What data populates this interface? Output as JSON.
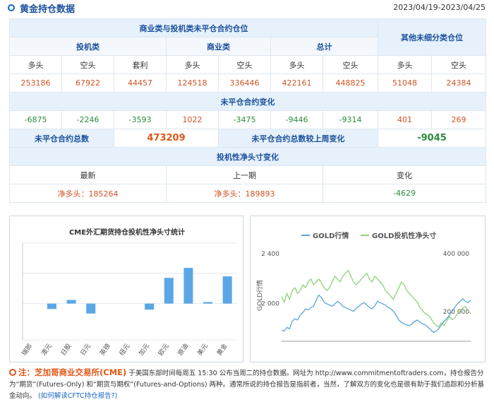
{
  "header": {
    "title": "黄金持仓数据",
    "date_range": "2023/04/19-2023/04/25"
  },
  "table": {
    "group_noncomm": "商业类与投机类未平仓合约仓位",
    "group_other": "其他未细分类仓位",
    "cat_spec": "投机类",
    "cat_comm": "商业类",
    "cat_total": "总计",
    "col_long": "多头",
    "col_short": "空头",
    "col_spread": "套利",
    "values": {
      "spec_long": "253186",
      "spec_short": "67922",
      "spec_spread": "44457",
      "comm_long": "124518",
      "comm_short": "336446",
      "total_long": "422161",
      "total_short": "448825",
      "other_long": "51048",
      "other_short": "24384"
    },
    "change_title": "未平仓合约变化",
    "changes": {
      "spec_long": "-6875",
      "spec_short": "-2246",
      "spec_spread": "-3593",
      "comm_long": "1022",
      "comm_short": "-3475",
      "total_long": "-9446",
      "total_short": "-9314",
      "other_long": "401",
      "other_short": "269"
    },
    "oi_total_label": "未平仓合约总数",
    "oi_total_value": "473209",
    "oi_change_label": "未平仓合约总数较上周变化",
    "oi_change_value": "-9045",
    "net_title": "投机性净头寸变化",
    "net_latest_label": "最新",
    "net_prev_label": "上一期",
    "net_change_label": "变化",
    "net_latest_value": "净多头：185264",
    "net_prev_value": "净多头：189893",
    "net_change_value": "-4629"
  },
  "chart_data": [
    {
      "type": "bar",
      "title": "CME外汇期货持仓投机性净头寸统计",
      "categories": [
        "瑞郎",
        "澳元",
        "日股",
        "日元",
        "英镑",
        "纽元",
        "加元",
        "欧元",
        "原油",
        "美元",
        "黄金"
      ],
      "values": [
        0,
        -0.18,
        0.12,
        -0.33,
        0,
        0,
        -0.2,
        0.85,
        1.18,
        0.05,
        0.9
      ],
      "ylim": [
        -1.2,
        2.0
      ],
      "grid": true,
      "colors": {
        "bar": "#5ba7e5",
        "grid": "#e3e8ee"
      }
    },
    {
      "type": "line",
      "series": [
        {
          "name": "GOLD行情",
          "color": "#58a6d9"
        },
        {
          "name": "GOLD投机性净头寸",
          "color": "#8ed27a"
        }
      ],
      "ylabel": "GOLD行情",
      "left_axis_ticks": [
        "2 400",
        "2 000"
      ],
      "right_axis_ticks": [
        "400 000",
        "200 000"
      ],
      "gold_price": [
        1780,
        1770,
        1800,
        1790,
        1850,
        1870,
        1860,
        1900,
        1920,
        1950,
        1940,
        1960,
        1970,
        2020,
        2060,
        2040,
        2000,
        1990,
        1980,
        1970,
        1990,
        2010,
        1995,
        1970,
        1960,
        1950,
        1940,
        1930,
        1955,
        1970,
        1990,
        2000,
        1980,
        1960,
        1950,
        1975,
        2010,
        2000,
        1990,
        1980,
        1960,
        1950,
        1930,
        1900,
        1860,
        1840,
        1830,
        1820,
        1815,
        1830,
        1850,
        1860,
        1840,
        1830,
        1820,
        1800,
        1780,
        1760,
        1770,
        1790,
        1820,
        1850,
        1870,
        1900,
        1930,
        1960,
        1990,
        2010,
        2030,
        2010,
        2000,
        2020
      ],
      "net_position": [
        250000,
        230000,
        260000,
        240000,
        270000,
        280000,
        260000,
        270000,
        290000,
        280000,
        300000,
        310000,
        290000,
        300000,
        310000,
        295000,
        280000,
        270000,
        280000,
        300000,
        320000,
        310000,
        300000,
        320000,
        330000,
        340000,
        320000,
        300000,
        290000,
        300000,
        310000,
        320000,
        330000,
        310000,
        300000,
        320000,
        310000,
        300000,
        290000,
        270000,
        260000,
        250000,
        240000,
        260000,
        280000,
        300000,
        290000,
        270000,
        260000,
        250000,
        240000,
        230000,
        210000,
        200000,
        190000,
        185000,
        175000,
        160000,
        150000,
        145000,
        160000,
        150000,
        165000,
        180000,
        170000,
        175000,
        190000,
        200000,
        210000,
        215000,
        200000,
        190000
      ],
      "colors": {
        "axis": "#999999"
      }
    }
  ],
  "note": {
    "prefix": "注：",
    "org": "芝加哥商业交易所(CME)",
    "text1": "于美国东部时间每周五 15:30 公布当周二的持仓数据。网址为 http://www.commitmentoftraders.com，持仓报告分为“期货”(Futures-Only) 和“期货与期权”(Futures-and-Options) 两种。通常所说的持仓报告是指前者，当然，了解双方的变化也是很有助于我们追踪和分析基金动向。",
    "link": "(如何解读CFTC持仓报告?)"
  }
}
